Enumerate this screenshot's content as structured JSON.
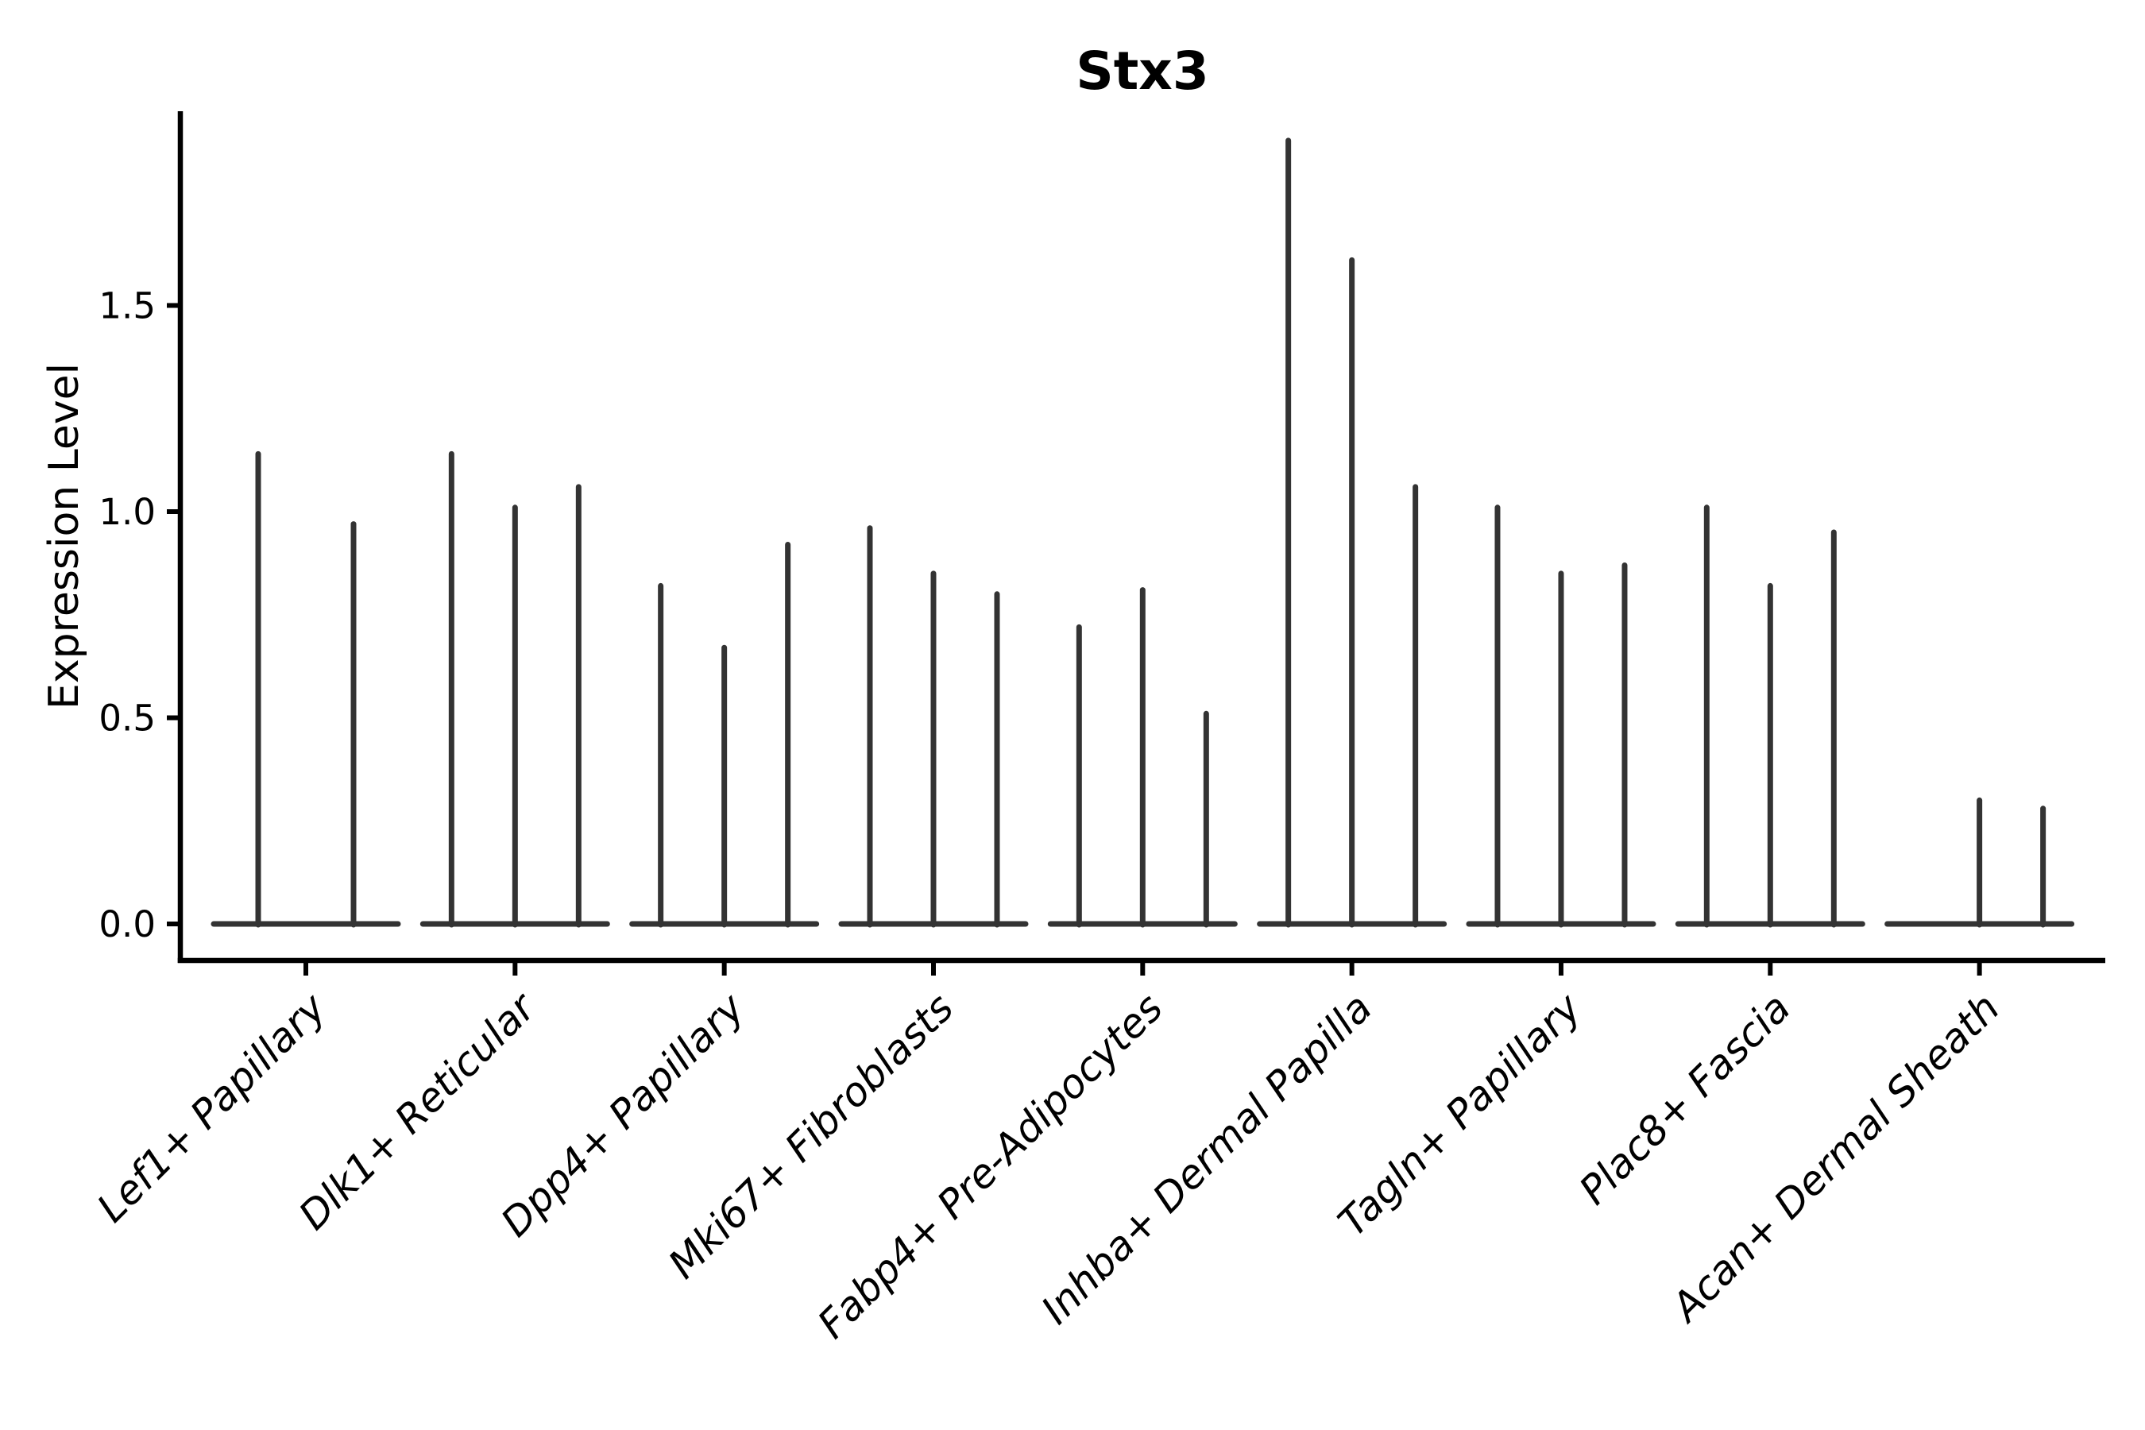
{
  "chart_data": {
    "type": "violin",
    "title": "Stx3",
    "xlabel": "",
    "ylabel": "Expression Level",
    "ylim": [
      -0.095,
      1.995
    ],
    "yticks": [
      0.0,
      0.5,
      1.0,
      1.5
    ],
    "ytick_labels": [
      "0.0",
      "0.5",
      "1.0",
      "1.5"
    ],
    "grid": false,
    "legend_position": "none",
    "x_tick_rotation_degrees": 45,
    "categories": [
      "Lef1+ Papillary",
      "Dlk1+ Reticular",
      "Dpp4+ Papillary",
      "Mki67+ Fibroblasts",
      "Fabp4+ Pre-Adipocytes",
      "Inhba+ Dermal Papilla",
      "Tagln+ Papillary",
      "Plac8+ Fascia",
      "Acan+ Dermal Sheath"
    ],
    "groups": [
      {
        "category": "Lef1+ Papillary",
        "violin_peaks": [
          1.14,
          0.97
        ]
      },
      {
        "category": "Dlk1+ Reticular",
        "violin_peaks": [
          1.14,
          1.01,
          1.06
        ]
      },
      {
        "category": "Dpp4+ Papillary",
        "violin_peaks": [
          0.82,
          0.67,
          0.92
        ]
      },
      {
        "category": "Mki67+ Fibroblasts",
        "violin_peaks": [
          0.96,
          0.85,
          0.8
        ]
      },
      {
        "category": "Fabp4+ Pre-Adipocytes",
        "violin_peaks": [
          0.72,
          0.81,
          0.51
        ]
      },
      {
        "category": "Inhba+ Dermal Papilla",
        "violin_peaks": [
          1.9,
          1.61,
          1.06
        ]
      },
      {
        "category": "Tagln+ Papillary",
        "violin_peaks": [
          1.01,
          0.85,
          0.87
        ]
      },
      {
        "category": "Plac8+ Fascia",
        "violin_peaks": [
          1.01,
          0.82,
          0.95
        ]
      },
      {
        "category": "Acan+ Dermal Sheath",
        "violin_peaks": [
          0.0,
          0.3,
          0.28
        ]
      }
    ],
    "colors": {
      "violin_line": "#333333",
      "axis": "#000000",
      "text": "#000000",
      "background": "#ffffff"
    }
  }
}
